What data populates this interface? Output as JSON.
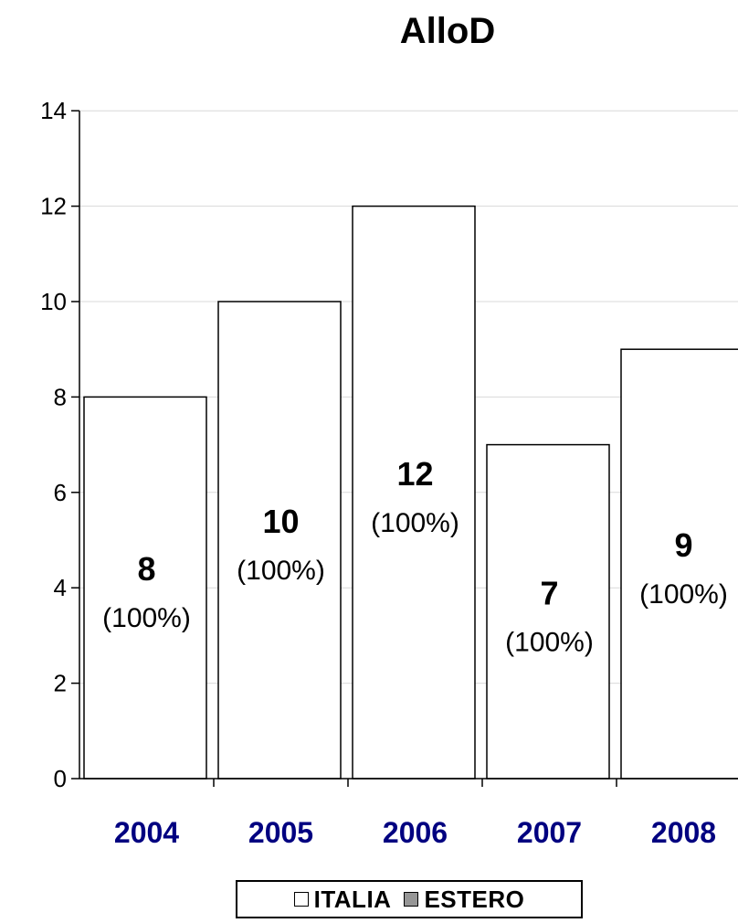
{
  "chart_data": {
    "type": "bar",
    "title": "AlloD",
    "categories": [
      "2004",
      "2005",
      "2006",
      "2007",
      "2008"
    ],
    "series": [
      {
        "name": "ITALIA",
        "values": [
          8,
          10,
          12,
          7,
          9
        ],
        "labels": [
          "8",
          "10",
          "12",
          "7",
          "9"
        ],
        "pct_labels": [
          "(100%)",
          "(100%)",
          "(100%)",
          "(100%)",
          "(100%)"
        ],
        "color": "#ffffff"
      },
      {
        "name": "ESTERO",
        "values": [
          0,
          0,
          0,
          0,
          0
        ],
        "color": "#969696"
      }
    ],
    "ylim": [
      0,
      14
    ],
    "yticks": [
      "0",
      "2",
      "4",
      "6",
      "8",
      "10",
      "12",
      "14"
    ],
    "grid": true,
    "legend_position": "bottom",
    "category_label_color": "#000080"
  }
}
